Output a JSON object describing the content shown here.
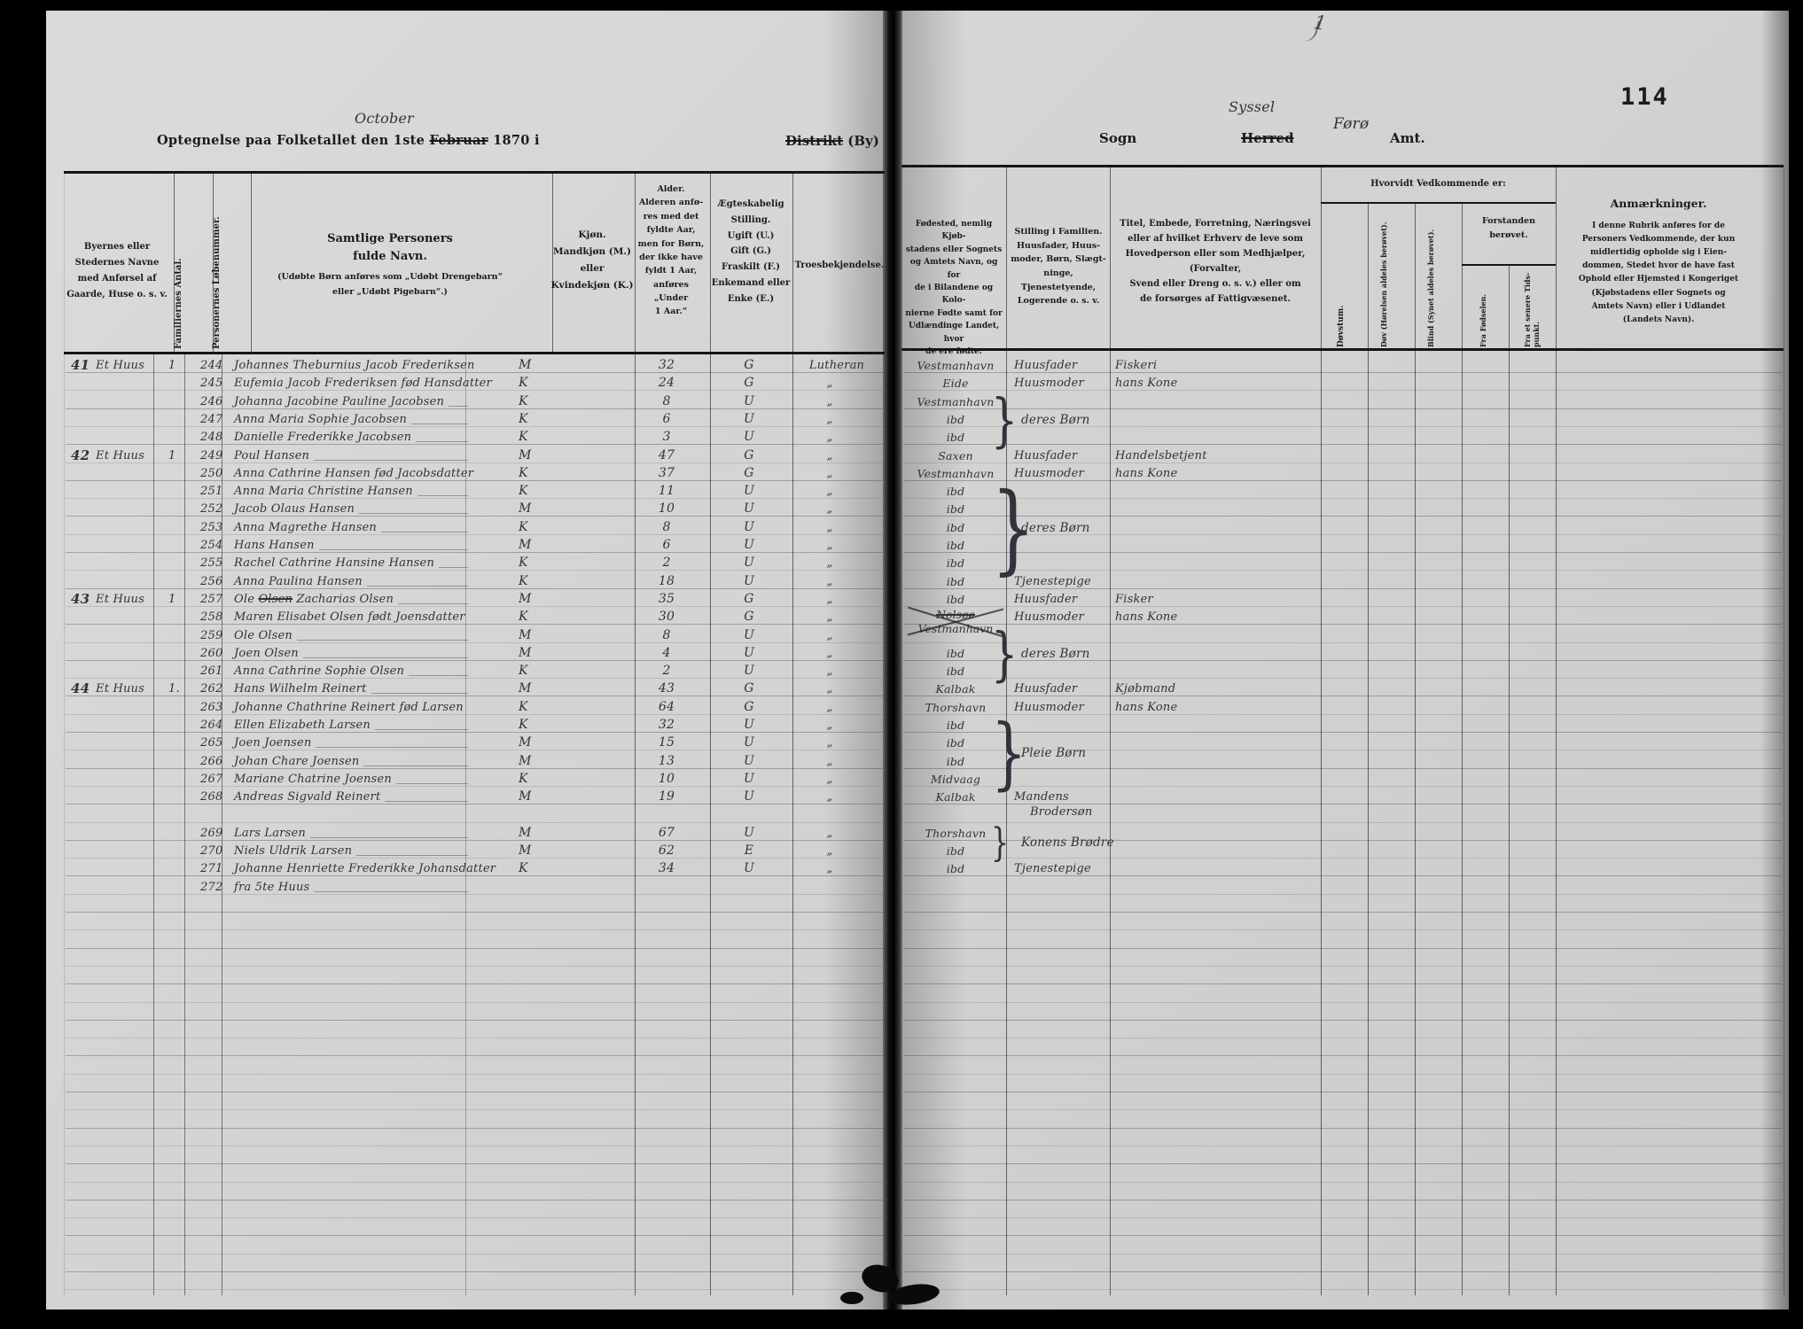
{
  "page": {
    "number": "114",
    "corner_mark": "1",
    "title_pre": "Optegnelse paa Folketallet den 1ste",
    "title_month_struck": "Februar",
    "title_month_hand": "October",
    "title_post": "1870 i",
    "district_struck": "Distrikt",
    "district_rest": " (By)",
    "sogn": "Sogn",
    "herred_struck": "Herred",
    "herred_hand": "Syssel",
    "amt_hand": "Førø",
    "amt": "Amt."
  },
  "headers": {
    "place": [
      "Byernes eller",
      "Stedernes Navne",
      "med Anførsel af",
      "Gaarde, Huse o. s. v."
    ],
    "families_vertical": "Familiernes Antal.",
    "persons_vertical": "Personernes Løbenummer.",
    "name_main": [
      "Samtlige Personers",
      "fulde Navn."
    ],
    "name_note": [
      "(Udøbte Børn anføres som „Udøbt Drengebarn“",
      "eller „Udøbt Pigebarn“.)"
    ],
    "sex": [
      "Kjøn.",
      "Mandkjøn (M.)",
      "eller",
      "Kvindekjøn (K.)"
    ],
    "age": [
      "Alder.",
      "Alderen anfø-",
      "res med det",
      "fyldte Aar,",
      "men for Børn,",
      "der ikke have",
      "fyldt 1 Aar,",
      "anføres",
      "„Under",
      "1 Aar.“"
    ],
    "marital": [
      "Ægteskabelig",
      "Stilling.",
      "Ugift (U.)",
      "Gift (G.)",
      "Fraskilt (F.)",
      "Enkemand eller",
      "Enke (E.)"
    ],
    "religion": "Troesbekjendelse.",
    "birthplace": [
      "Fødested, nemlig Kjøb-",
      "stadens eller Sognets",
      "og Amtets Navn, og for",
      "de i Bilandene og Kolo-",
      "nierne Fødte samt for",
      "Udlændinge Landet, hvor",
      "de ere fødte."
    ],
    "family_position": [
      "Stilling i Familien.",
      "Huusfader, Huus-",
      "moder, Børn, Slægt-",
      "ninge, Tjenestetyende,",
      "Logerende o. s. v."
    ],
    "occupation": [
      "Titel, Embede, Forretning, Næringsvei",
      "eller af hvilket Erhverv de leve som",
      "Hovedperson eller som Medhjælper, (Forvalter,",
      "Svend eller Dreng o. s. v.) eller om",
      "de forsørges af Fattigvæsenet."
    ],
    "condition_group": "Hvorvidt Vedkommende er:",
    "condition_cols": [
      "Døvstum.",
      "Døv (Hørelsen aldeles berøvet).",
      "Blind (Synet aldeles berøvet)."
    ],
    "insanity_group": [
      "Forstanden",
      "berøvet."
    ],
    "insanity_cols": [
      "Fra Fødselen.",
      "Fra et senere Tids-punkt."
    ],
    "remarks_title": "Anmærkninger.",
    "remarks_note": [
      "I denne Rubrik anføres for de",
      "Personers Vedkommende, der kun",
      "midlertidig opholde sig i Eien-",
      "dommen, Stedet hvor de have fast",
      "Ophold eller Hjemsted i Kongeriget",
      "(Kjøbstadens eller Sognets og",
      "Amtets Navn) eller i Udlandet",
      "(Landets Navn)."
    ]
  },
  "rows": [
    {
      "house_no": "41",
      "house": "Et Huus",
      "fam": "1",
      "nr": "244",
      "name": "Johannes Theburnius Jacob Frederiksen",
      "sex": "M",
      "age": "32",
      "status": "G",
      "rel": "Lutheran",
      "birth": "Vestmanhavn",
      "stilling": "Huusfader",
      "titel": "Fiskeri"
    },
    {
      "nr": "245",
      "name": "Eufemia Jacob Frederiksen fød Hansdatter",
      "sex": "K",
      "age": "24",
      "status": "G",
      "rel": "„",
      "birth": "Eide",
      "stilling": "Huusmoder",
      "titel": "hans Kone"
    },
    {
      "nr": "246",
      "name": "Johanna Jacobine Pauline Jacobsen",
      "sex": "K",
      "age": "8",
      "status": "U",
      "rel": "„",
      "birth": "Vestmanhavn"
    },
    {
      "nr": "247",
      "name": "Anna Maria Sophie Jacobsen",
      "sex": "K",
      "age": "6",
      "status": "U",
      "rel": "„",
      "birth": "ibd"
    },
    {
      "nr": "248",
      "name": "Danielle Frederikke Jacobsen",
      "sex": "K",
      "age": "3",
      "status": "U",
      "rel": "„",
      "birth": "ibd"
    },
    {
      "house_no": "42",
      "house": "Et Huus",
      "fam": "1",
      "nr": "249",
      "name": "Poul Hansen",
      "sex": "M",
      "age": "47",
      "status": "G",
      "rel": "„",
      "birth": "Saxen",
      "stilling": "Huusfader",
      "titel": "Handelsbetjent"
    },
    {
      "nr": "250",
      "name": "Anna Cathrine Hansen fød Jacobsdatter",
      "sex": "K",
      "age": "37",
      "status": "G",
      "rel": "„",
      "birth": "Vestmanhavn",
      "stilling": "Huusmoder",
      "titel": "hans Kone"
    },
    {
      "nr": "251",
      "name": "Anna Maria Christine Hansen",
      "sex": "K",
      "age": "11",
      "status": "U",
      "rel": "„",
      "birth": "ibd"
    },
    {
      "nr": "252",
      "name": "Jacob Olaus Hansen",
      "sex": "M",
      "age": "10",
      "status": "U",
      "rel": "„",
      "birth": "ibd"
    },
    {
      "nr": "253",
      "name": "Anna Magrethe Hansen",
      "sex": "K",
      "age": "8",
      "status": "U",
      "rel": "„",
      "birth": "ibd"
    },
    {
      "nr": "254",
      "name": "Hans Hansen",
      "sex": "M",
      "age": "6",
      "status": "U",
      "rel": "„",
      "birth": "ibd"
    },
    {
      "nr": "255",
      "name": "Rachel Cathrine Hansine Hansen",
      "sex": "K",
      "age": "2",
      "status": "U",
      "rel": "„",
      "birth": "ibd"
    },
    {
      "nr": "256",
      "name": "Anna Paulina Hansen",
      "sex": "K",
      "age": "18",
      "status": "U",
      "rel": "„",
      "birth": "ibd",
      "stilling": "Tjenestepige"
    },
    {
      "house_no": "43",
      "house": "Et Huus",
      "fam": "1",
      "nr": "257",
      "name1": "Ole",
      "name_struck": "Olsen",
      "name2": "Zacharias Olsen",
      "sex": "M",
      "age": "35",
      "status": "G",
      "rel": "„",
      "birth": "ibd",
      "stilling": "Huusfader",
      "titel": "Fisker"
    },
    {
      "nr": "258",
      "name": "Maren Elisabet Olsen født Joensdatter",
      "sex": "K",
      "age": "30",
      "status": "G",
      "rel": "„",
      "birth": "Nolsøe",
      "birth2": "Vestmanhavn",
      "birth_crossed": true,
      "stilling": "Huusmoder",
      "titel": "hans Kone"
    },
    {
      "nr": "259",
      "name": "Ole Olsen",
      "sex": "M",
      "age": "8",
      "status": "U",
      "rel": "„"
    },
    {
      "nr": "260",
      "name": "Joen Olsen",
      "sex": "M",
      "age": "4",
      "status": "U",
      "rel": "„",
      "birth": "ibd"
    },
    {
      "nr": "261",
      "name": "Anna Cathrine Sophie Olsen",
      "sex": "K",
      "age": "2",
      "status": "U",
      "rel": "„",
      "birth": "ibd"
    },
    {
      "house_no": "44",
      "house": "Et Huus",
      "fam": "1.",
      "nr": "262",
      "name": "Hans Wilhelm Reinert",
      "sex": "M",
      "age": "43",
      "status": "G",
      "rel": "„",
      "birth": "Kalbak",
      "stilling": "Huusfader",
      "titel": "Kjøbmand"
    },
    {
      "nr": "263",
      "name": "Johanne Chathrine Reinert fød Larsen",
      "sex": "K",
      "age": "64",
      "status": "G",
      "rel": "„",
      "birth": "Thorshavn",
      "stilling": "Huusmoder",
      "titel": "hans Kone"
    },
    {
      "nr": "264",
      "name": "Ellen Elizabeth Larsen",
      "sex": "K",
      "age": "32",
      "status": "U",
      "rel": "„",
      "birth": "ibd"
    },
    {
      "nr": "265",
      "name": "Joen Joensen",
      "sex": "M",
      "age": "15",
      "status": "U",
      "rel": "„",
      "birth": "ibd"
    },
    {
      "nr": "266",
      "name": "Johan Chare Joensen",
      "sex": "M",
      "age": "13",
      "status": "U",
      "rel": "„",
      "birth": "ibd"
    },
    {
      "nr": "267",
      "name": "Mariane Chatrine Joensen",
      "sex": "K",
      "age": "10",
      "status": "U",
      "rel": "„",
      "birth": "Midvaag"
    },
    {
      "nr": "268",
      "name": "Andreas Sigvald Reinert",
      "sex": "M",
      "age": "19",
      "status": "U",
      "rel": "„",
      "birth": "Kalbak",
      "stilling": "Mandens",
      "stilling2": "Brodersøn"
    },
    {},
    {
      "nr": "269",
      "name": "Lars Larsen",
      "sex": "M",
      "age": "67",
      "status": "U",
      "rel": "„",
      "birth": "Thorshavn"
    },
    {
      "nr": "270",
      "name": "Niels Uldrik Larsen",
      "sex": "M",
      "age": "62",
      "status": "E",
      "rel": "„",
      "birth": "ibd"
    },
    {
      "nr": "271",
      "name": "Johanne Henriette Frederikke Johansdatter",
      "sex": "K",
      "age": "34",
      "status": "U",
      "rel": "„",
      "birth": "ibd",
      "stilling": "Tjenestepige"
    },
    {
      "nr": "272",
      "name": "fra 5te Huus"
    }
  ],
  "braces": [
    {
      "from": 2,
      "to": 4,
      "label": "deres Børn"
    },
    {
      "from": 7,
      "to": 11,
      "label": "deres Børn"
    },
    {
      "from": 15,
      "to": 17,
      "label": "deres Børn"
    },
    {
      "from": 20,
      "to": 23,
      "label": "Pleie Børn"
    },
    {
      "from": 26,
      "to": 27,
      "label": "Konens Brødre"
    }
  ]
}
